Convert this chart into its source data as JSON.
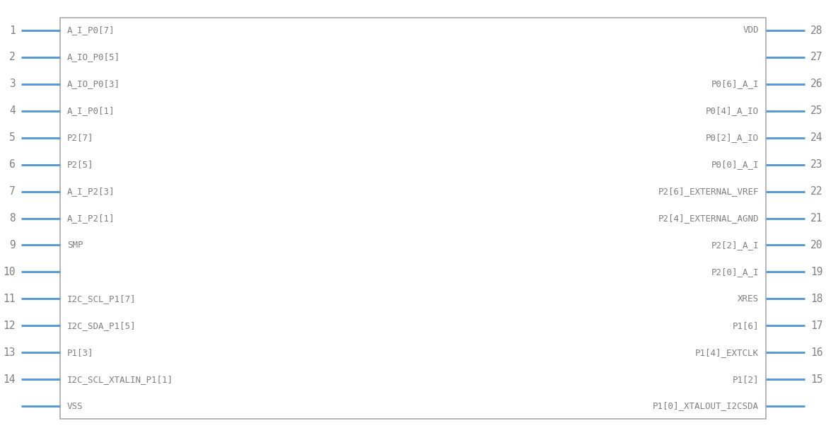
{
  "bg_color": "#ffffff",
  "border_color": "#a8a8a8",
  "pin_line_color": "#5b9bd5",
  "text_color": "#808080",
  "num_color": "#808080",
  "left_pins": [
    {
      "num": 1,
      "name": "A_I_P0[7]"
    },
    {
      "num": 2,
      "name": "A_IO_P0[5]"
    },
    {
      "num": 3,
      "name": "A_IO_P0[3]"
    },
    {
      "num": 4,
      "name": "A_I_P0[1]"
    },
    {
      "num": 5,
      "name": "P2[7]"
    },
    {
      "num": 6,
      "name": "P2[5]"
    },
    {
      "num": 7,
      "name": "A_I_P2[3]"
    },
    {
      "num": 8,
      "name": "A_I_P2[1]"
    },
    {
      "num": 9,
      "name": "SMP"
    },
    {
      "num": 10,
      "name": ""
    },
    {
      "num": 11,
      "name": "I2C_SCL_P1[7]"
    },
    {
      "num": 12,
      "name": "I2C_SDA_P1[5]"
    },
    {
      "num": 13,
      "name": "P1[3]"
    },
    {
      "num": 14,
      "name": "I2C_SCL_XTALIN_P1[1]"
    },
    {
      "num": -1,
      "name": "VSS"
    }
  ],
  "right_pins": [
    {
      "num": 28,
      "name": "VDD"
    },
    {
      "num": 27,
      "name": ""
    },
    {
      "num": 26,
      "name": "P0[6]_A_I"
    },
    {
      "num": 25,
      "name": "P0[4]_A_IO"
    },
    {
      "num": 24,
      "name": "P0[2]_A_IO"
    },
    {
      "num": 23,
      "name": "P0[0]_A_I"
    },
    {
      "num": 22,
      "name": "P2[6]_EXTERNAL_VREF"
    },
    {
      "num": 21,
      "name": "P2[4]_EXTERNAL_AGND"
    },
    {
      "num": 20,
      "name": "P2[2]_A_I"
    },
    {
      "num": 19,
      "name": "P2[0]_A_I"
    },
    {
      "num": 18,
      "name": "XRES"
    },
    {
      "num": 17,
      "name": "P1[6]"
    },
    {
      "num": 16,
      "name": "P1[4]_EXTCLK"
    },
    {
      "num": 15,
      "name": "P1[2]"
    },
    {
      "num": -1,
      "name": "P1[0]_XTALOUT_I2CSDA"
    }
  ],
  "fig_w": 11.68,
  "fig_h": 6.12,
  "font_size": 9.0,
  "num_font_size": 10.5
}
